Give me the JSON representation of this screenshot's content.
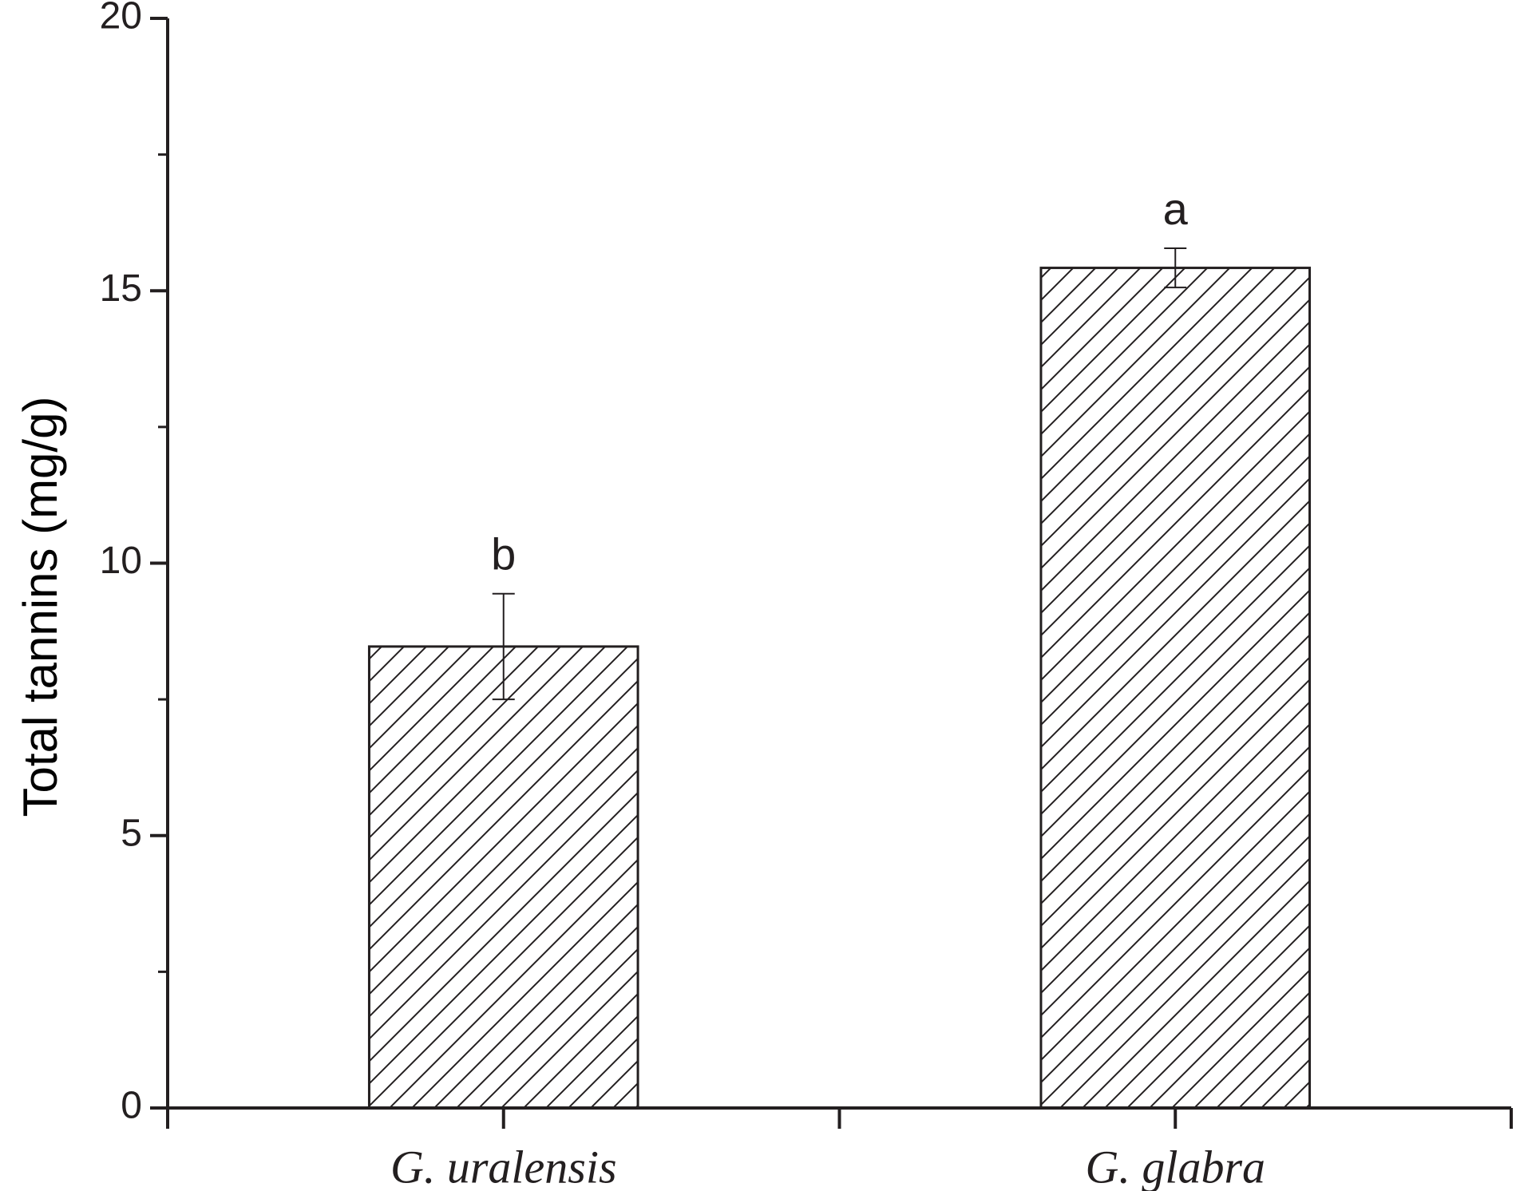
{
  "chart_data": {
    "type": "bar",
    "y_label": "Total tannins (mg/g)",
    "categories": [
      "G. uralensis",
      "G. glabra"
    ],
    "values": [
      8.47,
      15.42
    ],
    "errors": [
      0.97,
      0.36
    ],
    "annotations": [
      "b",
      "a"
    ],
    "color": "#231f20",
    "hatch": true,
    "ylim": [
      0,
      20
    ],
    "yticks": [
      0,
      5,
      10,
      15,
      20
    ],
    "yminorticks": [
      2.5,
      7.5,
      12.5,
      17.5
    ]
  }
}
